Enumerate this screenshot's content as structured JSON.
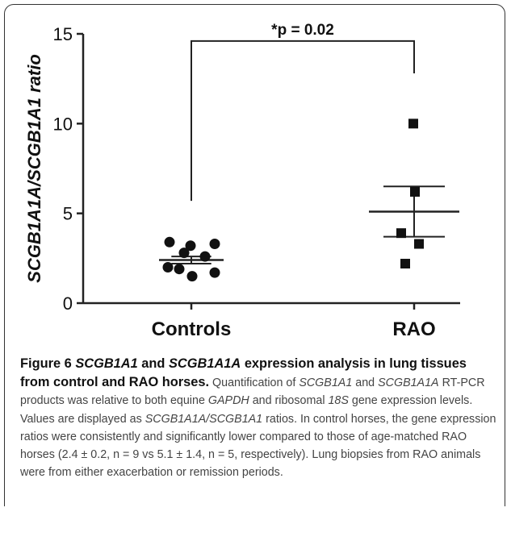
{
  "chart_data": {
    "type": "scatter",
    "ylabel": "SCGB1A1A/SCGB1A1 ratio",
    "ylim": [
      0,
      15
    ],
    "yticks": [
      0,
      5,
      10,
      15
    ],
    "categories": [
      "Controls",
      "RAO"
    ],
    "grid": false,
    "series": [
      {
        "category": "Controls",
        "marker": "circle",
        "values": [
          3.4,
          3.2,
          3.3,
          2.8,
          2.6,
          2.0,
          1.7,
          1.9,
          1.5
        ],
        "mean": 2.4,
        "sem": 0.2
      },
      {
        "category": "RAO",
        "marker": "square",
        "values": [
          10.0,
          6.2,
          3.9,
          3.3,
          2.2
        ],
        "mean": 5.1,
        "sem": 1.4
      }
    ],
    "annotations": [
      {
        "text": "*p = 0.02",
        "between": [
          "Controls",
          "RAO"
        ]
      }
    ]
  },
  "caption": {
    "fig_label": "Figure 6 ",
    "title": [
      {
        "t": "SCGB1A1",
        "i": true
      },
      {
        "t": " and ",
        "i": false
      },
      {
        "t": "SCGB1A1A",
        "i": true
      },
      {
        "t": " expression analysis in lung tissues from control and RAO horses.",
        "i": false
      }
    ],
    "body": [
      {
        "t": " Quantification of ",
        "i": false
      },
      {
        "t": "SCGB1A1",
        "i": true
      },
      {
        "t": " and ",
        "i": false
      },
      {
        "t": "SCGB1A1A",
        "i": true
      },
      {
        "t": " RT-PCR products was relative to both equine ",
        "i": false
      },
      {
        "t": "GAPDH",
        "i": true
      },
      {
        "t": " and ribosomal ",
        "i": false
      },
      {
        "t": "18S",
        "i": true
      },
      {
        "t": " gene expression levels. Values are displayed as ",
        "i": false
      },
      {
        "t": "SCGB1A1A/SCGB1A1",
        "i": true
      },
      {
        "t": " ratios. In control horses, the gene expression ratios were consistently and significantly lower compared to those of age-matched RAO horses (2.4 ± 0.2, n = 9 vs 5.1 ± 1.4, n = 5, respectively). Lung biopsies from RAO animals were from either exacerbation or remission periods.",
        "i": false
      }
    ]
  }
}
